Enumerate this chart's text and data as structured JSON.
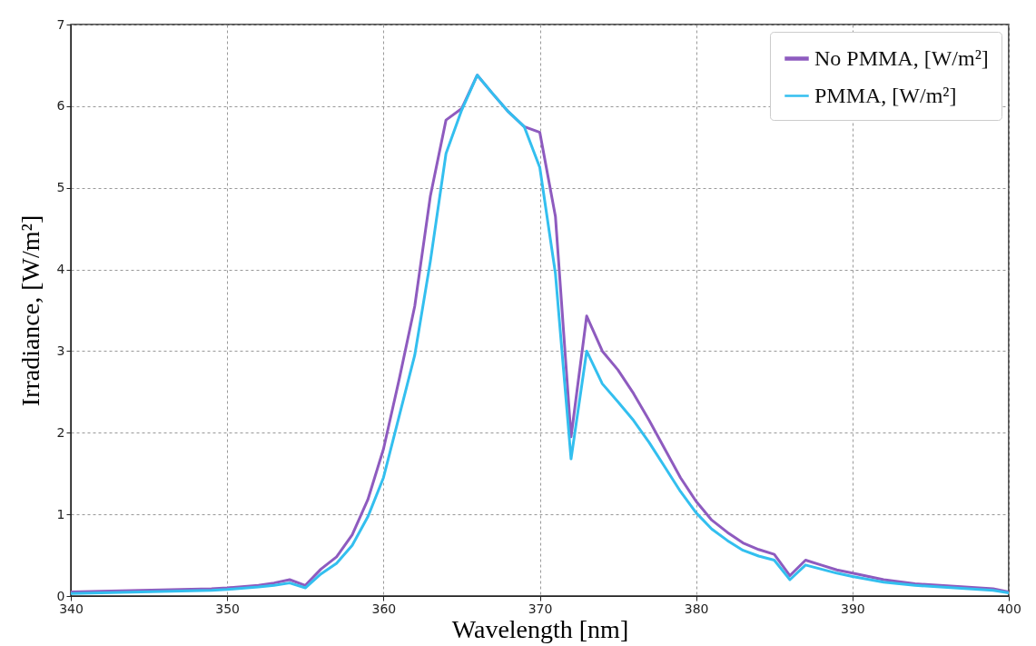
{
  "chart_data": {
    "type": "line",
    "xlabel": "Wavelength [nm]",
    "ylabel": "Irradiance, [W/m²]",
    "x": [
      340,
      349,
      350,
      352,
      353,
      354,
      355,
      356,
      357,
      358,
      359,
      360,
      361,
      362,
      363,
      364,
      365,
      366,
      367,
      368,
      369,
      370,
      371,
      372,
      373,
      374,
      375,
      376,
      377,
      378,
      379,
      380,
      381,
      382,
      383,
      384,
      385,
      386,
      387,
      388,
      389,
      390,
      392,
      394,
      399,
      400
    ],
    "series": [
      {
        "name": "No PMMA, [W/m²]",
        "color": "#8e5bbf",
        "values": [
          0.05,
          0.09,
          0.1,
          0.13,
          0.16,
          0.2,
          0.13,
          0.33,
          0.48,
          0.75,
          1.18,
          1.8,
          2.65,
          3.55,
          4.9,
          5.83,
          5.97,
          6.38,
          6.15,
          5.93,
          5.75,
          5.68,
          4.65,
          1.95,
          3.43,
          3.0,
          2.77,
          2.48,
          2.15,
          1.8,
          1.45,
          1.16,
          0.93,
          0.78,
          0.65,
          0.57,
          0.51,
          0.25,
          0.44,
          0.38,
          0.32,
          0.28,
          0.2,
          0.15,
          0.09,
          0.05
        ]
      },
      {
        "name": "PMMA, [W/m²]",
        "color": "#33bfef",
        "values": [
          0.03,
          0.07,
          0.08,
          0.11,
          0.13,
          0.16,
          0.1,
          0.27,
          0.4,
          0.62,
          0.97,
          1.45,
          2.2,
          2.95,
          4.1,
          5.42,
          5.95,
          6.38,
          6.15,
          5.93,
          5.75,
          5.25,
          3.95,
          1.68,
          3.0,
          2.6,
          2.38,
          2.15,
          1.88,
          1.58,
          1.28,
          1.02,
          0.82,
          0.68,
          0.56,
          0.49,
          0.44,
          0.2,
          0.38,
          0.33,
          0.28,
          0.24,
          0.17,
          0.13,
          0.07,
          0.04
        ]
      }
    ],
    "xlim": [
      340,
      400
    ],
    "ylim": [
      0,
      7
    ],
    "xticks": [
      340,
      350,
      360,
      370,
      380,
      390,
      400
    ],
    "yticks": [
      0,
      1,
      2,
      3,
      4,
      5,
      6,
      7
    ],
    "grid": true,
    "legend": "top right",
    "marker": "none",
    "line_style": "solid"
  }
}
